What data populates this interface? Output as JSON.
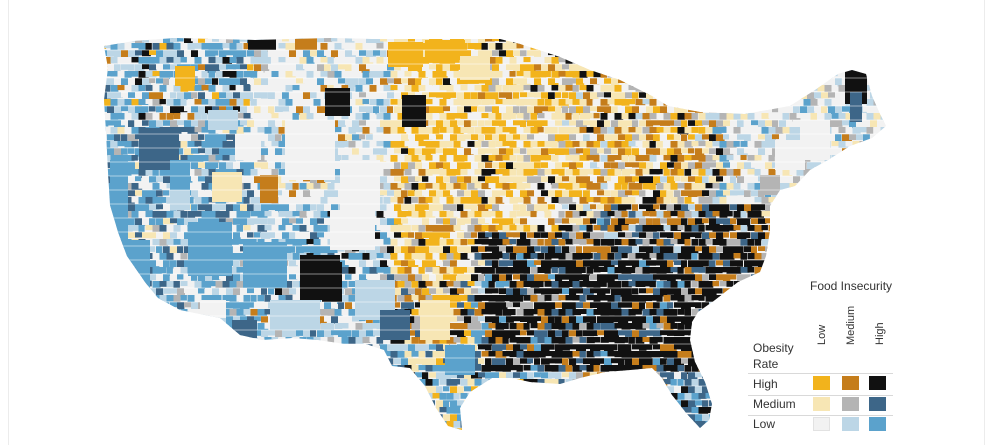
{
  "legend": {
    "title": "Food Insecurity",
    "columns": [
      "Low",
      "Medium",
      "High"
    ],
    "row_title": "Obesity Rate",
    "rows": [
      {
        "label": "High",
        "colors": [
          "#f2b31c",
          "#c57d1b",
          "#111111"
        ]
      },
      {
        "label": "Medium",
        "colors": [
          "#f7e6b4",
          "#b4b4b4",
          "#3d6688"
        ]
      },
      {
        "label": "Low",
        "colors": [
          "#f2f2f2",
          "#bcd6e6",
          "#5ba2cc"
        ]
      }
    ]
  },
  "map_data": {
    "type": "bivariate-choropleth",
    "region": "Contiguous United States counties",
    "categories": {
      "LL": "#f2f2f2",
      "LM": "#bcd6e6",
      "LH": "#5ba2cc",
      "ML": "#f7e6b4",
      "MM": "#b4b4b4",
      "MH": "#3d6688",
      "HL": "#f2b31c",
      "HM": "#c57d1b",
      "HH": "#111111"
    }
  }
}
